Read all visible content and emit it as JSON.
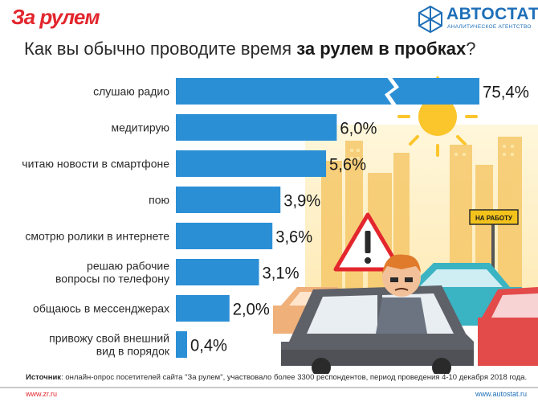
{
  "header": {
    "logo_left": "За рулем",
    "logo_right": "АВТОСТАТ",
    "logo_right_sub": "АНАЛИТИЧЕСКОЕ АГЕНТСТВО"
  },
  "title": {
    "prefix": "Как вы обычно проводите время ",
    "bold": "за рулем в пробках",
    "suffix": "?"
  },
  "chart_data": {
    "type": "bar",
    "orientation": "horizontal",
    "categories": [
      [
        "слушаю радио"
      ],
      [
        "медитирую"
      ],
      [
        "читаю новости в смартфоне"
      ],
      [
        "пою"
      ],
      [
        "смотрю ролики в интернете"
      ],
      [
        "решаю рабочие",
        "вопросы по телефону"
      ],
      [
        "общаюсь в мессенджерах"
      ],
      [
        "привожу свой внешний",
        "вид в порядок"
      ]
    ],
    "values": [
      75.4,
      6.0,
      5.6,
      3.9,
      3.6,
      3.1,
      2.0,
      0.4
    ],
    "value_labels": [
      "75,4%",
      "6,0%",
      "5,6%",
      "3,9%",
      "3,6%",
      "3,1%",
      "2,0%",
      "0,4%"
    ],
    "axis_break": true,
    "bar_color": "#2b8fd6"
  },
  "scene": {
    "sign_text": "НА РАБОТУ"
  },
  "footer": {
    "source_label": "Источник",
    "source_text": ": онлайн-опрос посетителей сайта \"За рулем\", участвовало более 3300 респондентов, период проведения 4-10 декабря 2018 года.",
    "left_url": "www.zr.ru",
    "right_url": "www.autostat.ru"
  }
}
